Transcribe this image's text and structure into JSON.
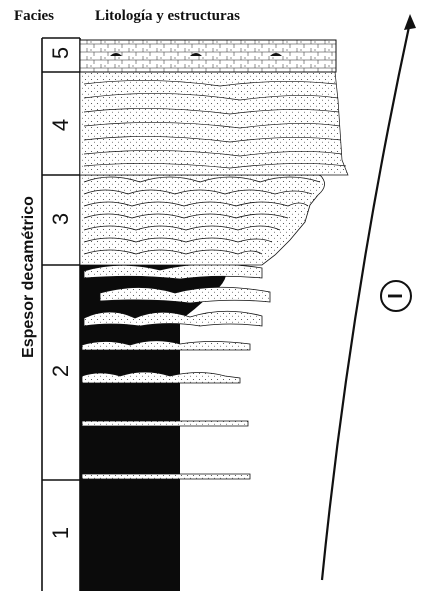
{
  "headers": {
    "facies": "Facies",
    "lithology": "Litología y estructuras"
  },
  "y_axis_label": "Espesor decamétrico",
  "facies": [
    {
      "number": "5"
    },
    {
      "number": "4"
    },
    {
      "number": "3"
    },
    {
      "number": "2"
    },
    {
      "number": "1"
    }
  ],
  "trend_arrow_label": "I",
  "colors": {
    "ink": "#111111",
    "paper": "#ffffff",
    "shale": "#0b0b0b"
  }
}
